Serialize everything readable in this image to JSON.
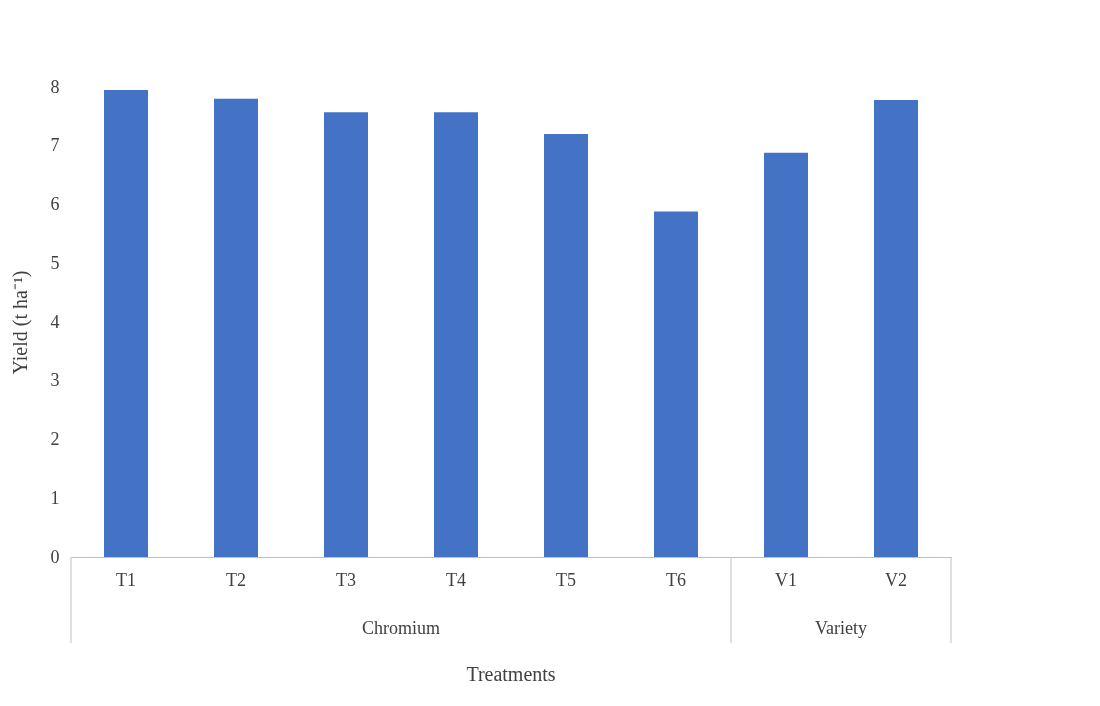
{
  "chart_data": {
    "type": "bar",
    "xlabel": "Treatments",
    "ylabel": "Yield (t ha⁻¹)",
    "categories": [
      "T1",
      "T2",
      "T3",
      "T4",
      "T5",
      "T6",
      "V1",
      "V2"
    ],
    "values": [
      7.95,
      7.8,
      7.57,
      7.57,
      7.2,
      5.88,
      6.88,
      7.78
    ],
    "color": "#4472c4",
    "ylim": [
      0,
      8
    ],
    "yticks": [
      0,
      1,
      2,
      3,
      4,
      5,
      6,
      7,
      8
    ],
    "grid": false,
    "annotations": [
      "Chromium",
      "Variety"
    ]
  }
}
